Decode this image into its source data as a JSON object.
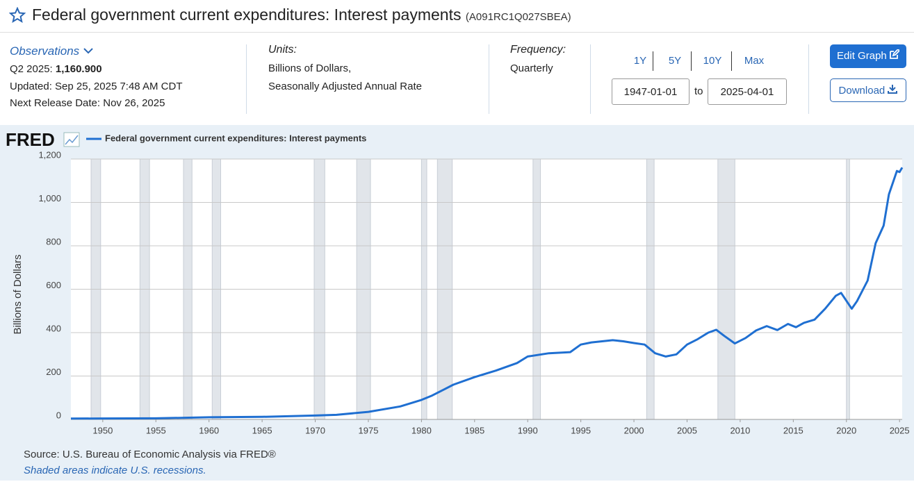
{
  "header": {
    "title": "Federal government current expenditures: Interest payments",
    "series_id": "(A091RC1Q027SBEA)"
  },
  "observations": {
    "label": "Observations",
    "period": "Q2 2025:",
    "value": "1,160.900",
    "updated": "Updated: Sep 25, 2025 7:48 AM CDT",
    "next_release": "Next Release Date: Nov 26, 2025"
  },
  "units": {
    "label": "Units:",
    "lines": [
      "Billions of Dollars,",
      "Seasonally Adjusted Annual Rate"
    ]
  },
  "frequency": {
    "label": "Frequency:",
    "value": "Quarterly"
  },
  "controls": {
    "ranges": [
      "1Y",
      "5Y",
      "10Y",
      "Max"
    ],
    "start": "1947-01-01",
    "to": "to",
    "end": "2025-04-01",
    "edit": "Edit Graph",
    "download": "Download"
  },
  "chart_data": {
    "type": "line",
    "logo": "FRED",
    "y_label": "Billions of Dollars",
    "source": "Source: U.S. Bureau of Economic Analysis via FRED®",
    "note": "Shaded areas indicate U.S. recessions.",
    "x": [
      1947,
      1950,
      1955,
      1960,
      1965,
      1970,
      1972,
      1975,
      1978,
      1980,
      1981,
      1982,
      1983,
      1985,
      1987,
      1989,
      1990,
      1992,
      1994,
      1995,
      1996,
      1998,
      1999,
      2000,
      2001,
      2002,
      2003,
      2004,
      2005,
      2006,
      2007,
      2007.75,
      2008.5,
      2009.5,
      2010.5,
      2011.5,
      2012.5,
      2013.5,
      2014.5,
      2015.25,
      2016,
      2017,
      2018,
      2019,
      2019.5,
      2020.5,
      2021,
      2022,
      2022.75,
      2023.5,
      2024,
      2024.75,
      2025,
      2025.25
    ],
    "series": [
      {
        "name": "Federal government current expenditures: Interest payments",
        "color": "#1f6fd1",
        "values": [
          4,
          4.5,
          5,
          10,
          12,
          18,
          21,
          35,
          60,
          90,
          110,
          135,
          160,
          195,
          225,
          260,
          290,
          305,
          310,
          345,
          355,
          365,
          360,
          352,
          345,
          305,
          290,
          300,
          345,
          370,
          400,
          413,
          385,
          350,
          375,
          410,
          430,
          412,
          440,
          425,
          445,
          460,
          510,
          570,
          583,
          510,
          545,
          640,
          812,
          893,
          1037,
          1145,
          1140,
          1160.9
        ]
      }
    ],
    "recessions": [
      [
        1948.9,
        1949.8
      ],
      [
        1953.5,
        1954.4
      ],
      [
        1957.6,
        1958.4
      ],
      [
        1960.3,
        1961.1
      ],
      [
        1969.9,
        1970.9
      ],
      [
        1973.9,
        1975.2
      ],
      [
        1980.0,
        1980.5
      ],
      [
        1981.5,
        1982.9
      ],
      [
        1990.5,
        1991.2
      ],
      [
        2001.2,
        2001.9
      ],
      [
        2007.9,
        2009.5
      ],
      [
        2020.0,
        2020.3
      ]
    ],
    "xlim": [
      1947,
      2025.25
    ],
    "xticks": [
      1950,
      1955,
      1960,
      1965,
      1970,
      1975,
      1980,
      1985,
      1990,
      1995,
      2000,
      2005,
      2010,
      2015,
      2020,
      2025
    ],
    "ylim": [
      0,
      1200
    ],
    "yticks": [
      0,
      200,
      400,
      600,
      800,
      {
        "value": 1000,
        "label": "1,000"
      },
      {
        "value": 1200,
        "label": "1,200"
      }
    ],
    "grid": true
  }
}
